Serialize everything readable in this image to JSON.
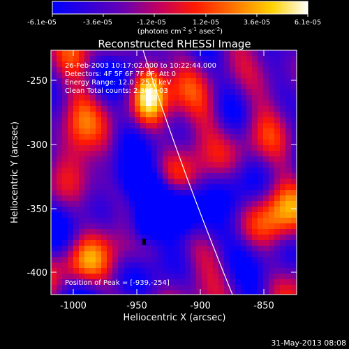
{
  "colorbar": {
    "tick_labels": [
      "-6.1e-05",
      "-3.6e-05",
      "-1.2e-05",
      "1.2e-05",
      "3.6e-05",
      "6.1e-05"
    ],
    "units_prefix": "(photons cm",
    "units_exp1": "-2",
    "units_mid": " s",
    "units_exp2": "-1",
    "units_mid2": " asec",
    "units_exp3": "-2",
    "units_suffix": ")"
  },
  "plot": {
    "title": "Reconstructed RHESSI Image",
    "xlabel": "Heliocentric X (arcsec)",
    "ylabel": "Heliocentric Y (arcsec)",
    "x_ticks": [
      "-1000",
      "-950",
      "-900",
      "-850"
    ],
    "y_ticks": [
      "-250",
      "-300",
      "-350",
      "-400"
    ],
    "info_lines": [
      "26-Feb-2003 10:17:02.000 to 10:22:44.000",
      "Detectors: 4F 5F 6F 7F 8F, Att 0",
      "Energy Range: 12.0 - 25.0 keV",
      "Clean    Total counts: 2.38E+03"
    ],
    "peak_text": "Position of Peak = [-939,-254]"
  },
  "footer": {
    "date": "31-May-2013 08:08"
  },
  "chart_data": {
    "type": "heatmap",
    "title": "Reconstructed RHESSI Image",
    "xlabel": "Heliocentric X (arcsec)",
    "ylabel": "Heliocentric Y (arcsec)",
    "xlim": [
      -1015,
      -822
    ],
    "ylim": [
      -420,
      -230
    ],
    "x_ticks": [
      -1000,
      -950,
      -900,
      -850
    ],
    "y_ticks": [
      -250,
      -300,
      -350,
      -400
    ],
    "colorbar_range": [
      -6.1e-05,
      6.1e-05
    ],
    "peak": [
      -939,
      -254
    ],
    "colors": {
      "low": "#1a00ff",
      "mid": "#6b3aa0",
      "high": "#ffffff"
    }
  }
}
